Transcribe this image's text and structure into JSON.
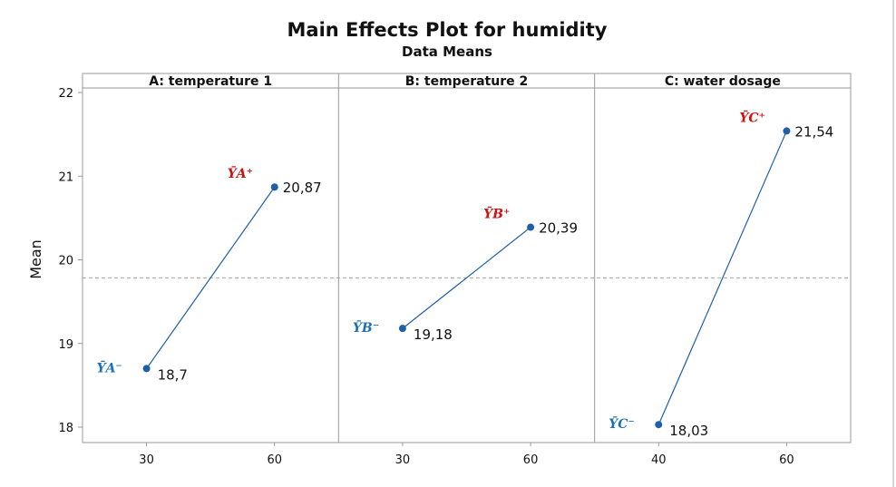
{
  "chart_data": {
    "type": "line",
    "title": "Main Effects Plot for humidity",
    "subtitle": "Data Means",
    "ylabel": "Mean",
    "ylim": [
      17.85,
      22.2
    ],
    "yticks": [
      18,
      19,
      20,
      21,
      22
    ],
    "grid": false,
    "reference_line": {
      "value": 19.785,
      "style": "dashed"
    },
    "series_color": "#1f5fa8",
    "panels": [
      {
        "name": "A: temperature 1",
        "x": [
          "30",
          "60"
        ],
        "values": [
          18.7,
          20.87
        ],
        "value_labels": [
          "18,7",
          "20,87"
        ],
        "annotations": [
          {
            "text": "ȲA⁻",
            "color": "#1f6fb5",
            "at": "low"
          },
          {
            "text": "ȲA⁺",
            "color": "#d01010",
            "at": "high"
          }
        ]
      },
      {
        "name": "B: temperature 2",
        "x": [
          "30",
          "60"
        ],
        "values": [
          19.18,
          20.39
        ],
        "value_labels": [
          "19,18",
          "20,39"
        ],
        "annotations": [
          {
            "text": "ȲB⁻",
            "color": "#1f6fb5",
            "at": "low"
          },
          {
            "text": "ȲB⁺",
            "color": "#d01010",
            "at": "high"
          }
        ]
      },
      {
        "name": "C: water dosage",
        "x": [
          "40",
          "60"
        ],
        "values": [
          18.03,
          21.54
        ],
        "value_labels": [
          "18,03",
          "21,54"
        ],
        "annotations": [
          {
            "text": "ȲC⁻",
            "color": "#1f6fb5",
            "at": "low"
          },
          {
            "text": "ȲC⁺",
            "color": "#d01010",
            "at": "high"
          }
        ]
      }
    ]
  }
}
